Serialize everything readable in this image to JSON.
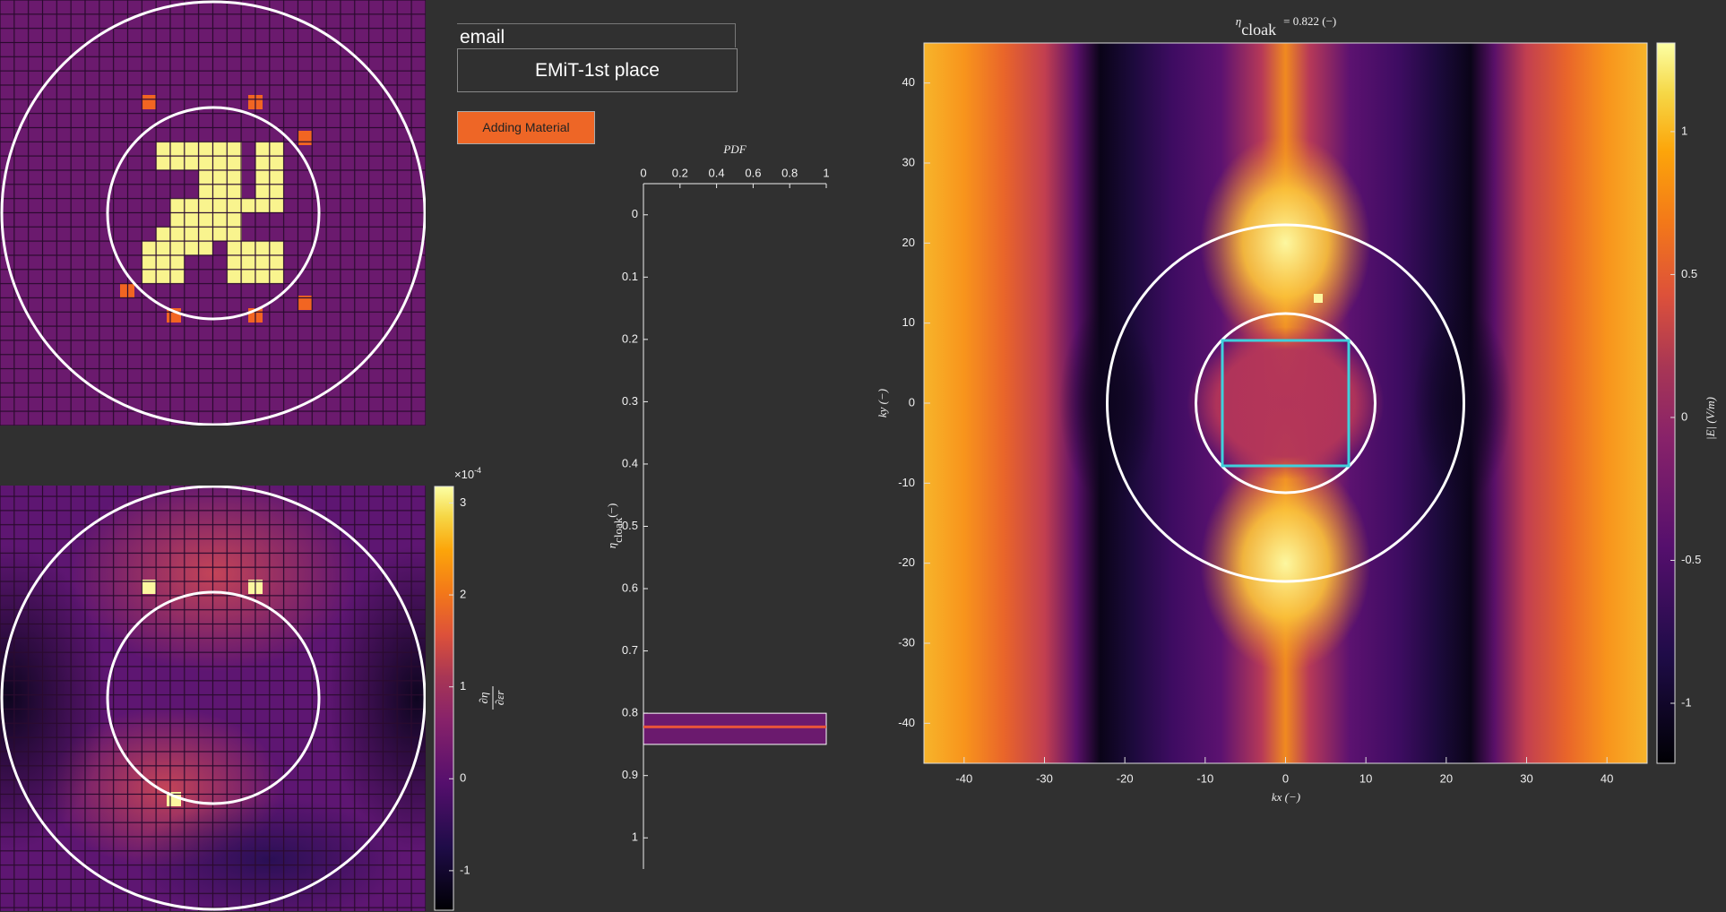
{
  "form": {
    "email": "email",
    "title": "EMiT-1st place",
    "button": "Adding Material"
  },
  "chart_data": [
    {
      "type": "histogram",
      "orientation": "horizontal",
      "title": "PDF",
      "y_label": {
        "symbol": "η",
        "subscript": "cloak",
        "unit": "(−)"
      },
      "bins": [
        0.8,
        0.85
      ],
      "values": [
        1
      ],
      "marker": 0.822,
      "color": "#6b1a6e",
      "marker_color": "#e8543a",
      "xlim": [
        0,
        1
      ],
      "ylim": [
        -0.05,
        1.05
      ],
      "y_reversed": true,
      "xticks": [
        0,
        0.2,
        0.4,
        0.6,
        0.8,
        1
      ],
      "yticks": [
        0,
        0.1,
        0.2,
        0.3,
        0.4,
        0.5,
        0.6,
        0.7,
        0.8,
        0.9,
        1
      ]
    },
    {
      "type": "heatmap",
      "title": {
        "symbol": "η",
        "subscript": "cloak",
        "text": "= 0.822 (−)"
      },
      "x_label": "kx (−)",
      "y_label": "ky (−)",
      "xlim": [
        -45,
        45
      ],
      "ylim": [
        -45,
        45
      ],
      "xticks": [
        -40,
        -30,
        -20,
        -10,
        0,
        10,
        20,
        30,
        40
      ],
      "yticks": [
        -40,
        -30,
        -20,
        -10,
        0,
        10,
        20,
        30,
        40
      ],
      "colorbar": {
        "clim": [
          -1.21,
          1.31
        ],
        "ticks": [
          -1,
          -0.5,
          0,
          0.5,
          1
        ],
        "label": "|E| (V/m)"
      }
    },
    {
      "type": "heatmap",
      "colorbar": {
        "clim": [
          -1.43,
          3.18
        ],
        "ticks": [
          -1,
          0,
          1,
          2,
          3
        ],
        "multiplier": "×10",
        "exponent": "-4",
        "label_numerator": "∂η",
        "label_denominator": "∂εr"
      }
    }
  ]
}
